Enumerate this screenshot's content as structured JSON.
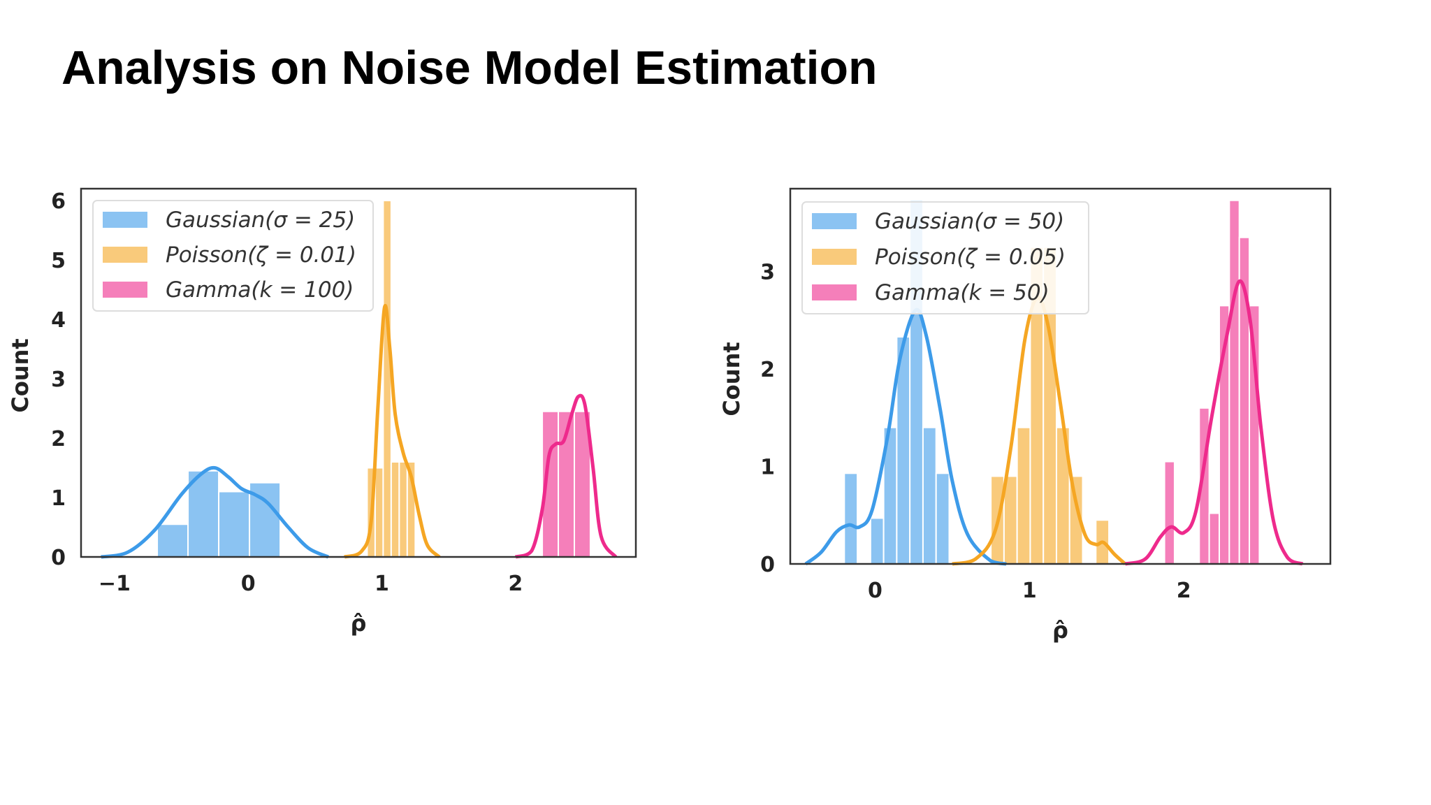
{
  "slide": {
    "title": "Analysis on Noise Model Estimation"
  },
  "colors": {
    "gaussian": "#3d9be9",
    "poisson": "#f5a623",
    "gamma": "#ee2a8c"
  },
  "chart_data": [
    {
      "type": "bar",
      "title": "",
      "xlabel": "ρ̂",
      "ylabel": "Count",
      "xlim": [
        -1.25,
        2.9
      ],
      "ylim": [
        0,
        6.2
      ],
      "xticks": [
        -1,
        0,
        1,
        2
      ],
      "xtick_labels": [
        "−1",
        "0",
        "1",
        "2"
      ],
      "yticks": [
        0,
        1,
        2,
        3,
        4,
        5,
        6
      ],
      "ytick_labels": [
        "0",
        "1",
        "2",
        "3",
        "4",
        "5",
        "6"
      ],
      "legend_position": "top-left",
      "grid": false,
      "series": [
        {
          "name": "Gaussian(σ = 25)",
          "color_key": "gaussian",
          "bin_width": 0.23,
          "bin_starts": [
            -0.68,
            -0.45,
            -0.22,
            0.01
          ],
          "values": [
            0.55,
            1.45,
            1.1,
            1.25
          ],
          "kde": [
            [
              -1.1,
              0.0
            ],
            [
              -0.9,
              0.08
            ],
            [
              -0.7,
              0.45
            ],
            [
              -0.5,
              1.05
            ],
            [
              -0.35,
              1.4
            ],
            [
              -0.25,
              1.5
            ],
            [
              -0.15,
              1.35
            ],
            [
              -0.05,
              1.15
            ],
            [
              0.05,
              1.05
            ],
            [
              0.15,
              0.9
            ],
            [
              0.3,
              0.5
            ],
            [
              0.45,
              0.15
            ],
            [
              0.6,
              0.0
            ]
          ]
        },
        {
          "name": "Poisson(ζ = 0.01)",
          "color_key": "poisson",
          "bin_width": 0.06,
          "bin_starts": [
            0.89,
            0.95,
            1.01,
            1.07,
            1.13,
            1.19
          ],
          "values": [
            1.5,
            1.5,
            6.0,
            1.6,
            1.6,
            1.6
          ],
          "kde": [
            [
              0.72,
              0.0
            ],
            [
              0.85,
              0.1
            ],
            [
              0.92,
              0.6
            ],
            [
              0.97,
              2.5
            ],
            [
              1.02,
              4.2
            ],
            [
              1.06,
              3.5
            ],
            [
              1.1,
              2.4
            ],
            [
              1.16,
              1.75
            ],
            [
              1.22,
              1.35
            ],
            [
              1.28,
              0.7
            ],
            [
              1.34,
              0.2
            ],
            [
              1.43,
              0.0
            ]
          ]
        },
        {
          "name": "Gamma(k = 100)",
          "color_key": "gamma",
          "bin_width": 0.12,
          "bin_starts": [
            2.2,
            2.32,
            2.44
          ],
          "values": [
            2.45,
            2.45,
            2.45
          ],
          "kde": [
            [
              2.0,
              0.0
            ],
            [
              2.12,
              0.1
            ],
            [
              2.2,
              0.8
            ],
            [
              2.25,
              1.7
            ],
            [
              2.3,
              1.9
            ],
            [
              2.36,
              1.95
            ],
            [
              2.42,
              2.4
            ],
            [
              2.47,
              2.7
            ],
            [
              2.52,
              2.55
            ],
            [
              2.58,
              1.5
            ],
            [
              2.64,
              0.35
            ],
            [
              2.75,
              0.0
            ]
          ]
        }
      ]
    },
    {
      "type": "bar",
      "title": "",
      "xlabel": "ρ̂",
      "ylabel": "Count",
      "xlim": [
        -0.55,
        2.95
      ],
      "ylim": [
        0,
        3.85
      ],
      "xticks": [
        0,
        1,
        2
      ],
      "xtick_labels": [
        "0",
        "1",
        "2"
      ],
      "yticks": [
        0,
        1,
        2,
        3
      ],
      "ytick_labels": [
        "0",
        "1",
        "2",
        "3"
      ],
      "legend_position": "top-left",
      "grid": false,
      "series": [
        {
          "name": "Gaussian(σ = 50)",
          "color_key": "gaussian",
          "bin_width": 0.085,
          "bin_starts": [
            -0.2,
            -0.03,
            0.055,
            0.14,
            0.225,
            0.31,
            0.395
          ],
          "values": [
            0.93,
            0.47,
            1.4,
            2.33,
            3.73,
            1.4,
            0.93
          ],
          "kde": [
            [
              -0.45,
              0.0
            ],
            [
              -0.35,
              0.12
            ],
            [
              -0.25,
              0.33
            ],
            [
              -0.17,
              0.4
            ],
            [
              -0.1,
              0.38
            ],
            [
              -0.02,
              0.55
            ],
            [
              0.08,
              1.3
            ],
            [
              0.16,
              2.1
            ],
            [
              0.26,
              2.6
            ],
            [
              0.33,
              2.35
            ],
            [
              0.42,
              1.6
            ],
            [
              0.5,
              0.85
            ],
            [
              0.6,
              0.3
            ],
            [
              0.75,
              0.03
            ],
            [
              0.85,
              0.0
            ]
          ]
        },
        {
          "name": "Poisson(ζ = 0.05)",
          "color_key": "poisson",
          "bin_width": 0.085,
          "bin_starts": [
            0.75,
            0.835,
            0.92,
            1.005,
            1.09,
            1.175,
            1.26,
            1.43
          ],
          "values": [
            0.9,
            0.9,
            1.4,
            3.25,
            3.25,
            1.4,
            0.9,
            0.45
          ],
          "kde": [
            [
              0.5,
              0.0
            ],
            [
              0.65,
              0.05
            ],
            [
              0.78,
              0.35
            ],
            [
              0.88,
              1.2
            ],
            [
              0.97,
              2.3
            ],
            [
              1.05,
              2.73
            ],
            [
              1.12,
              2.45
            ],
            [
              1.2,
              1.65
            ],
            [
              1.28,
              0.8
            ],
            [
              1.36,
              0.3
            ],
            [
              1.43,
              0.2
            ],
            [
              1.48,
              0.22
            ],
            [
              1.55,
              0.1
            ],
            [
              1.62,
              0.0
            ]
          ]
        },
        {
          "name": "Gamma(k = 50)",
          "color_key": "gamma",
          "bin_width": 0.065,
          "bin_starts": [
            1.875,
            2.1,
            2.165,
            2.23,
            2.295,
            2.36,
            2.425
          ],
          "values": [
            1.05,
            1.6,
            0.52,
            2.65,
            3.73,
            3.35,
            2.65
          ],
          "kde": [
            [
              1.62,
              0.0
            ],
            [
              1.75,
              0.05
            ],
            [
              1.85,
              0.28
            ],
            [
              1.92,
              0.38
            ],
            [
              2.0,
              0.32
            ],
            [
              2.08,
              0.55
            ],
            [
              2.18,
              1.5
            ],
            [
              2.28,
              2.35
            ],
            [
              2.36,
              2.9
            ],
            [
              2.43,
              2.5
            ],
            [
              2.5,
              1.4
            ],
            [
              2.58,
              0.45
            ],
            [
              2.67,
              0.07
            ],
            [
              2.77,
              0.0
            ]
          ]
        }
      ]
    }
  ]
}
